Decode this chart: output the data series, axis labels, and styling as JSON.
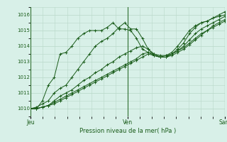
{
  "title": "",
  "xlabel": "Pression niveau de la mer( hPa )",
  "ylabel": "",
  "bg_color": "#d8f0e8",
  "grid_color": "#b8d8c8",
  "line_color": "#1a5c1a",
  "marker": "+",
  "ylim": [
    1009.5,
    1016.5
  ],
  "yticks": [
    1010,
    1011,
    1012,
    1013,
    1014,
    1015,
    1016
  ],
  "xlim": [
    0,
    96
  ],
  "day_ticks": [
    0,
    48,
    96
  ],
  "day_labels": [
    "Jeu",
    "Ven",
    "Sam"
  ],
  "series": [
    [
      1010.0,
      1010.0,
      1010.5,
      1011.5,
      1012.0,
      1013.5,
      1013.6,
      1014.0,
      1014.5,
      1014.8,
      1015.0,
      1015.0,
      1015.0,
      1015.2,
      1015.5,
      1015.1,
      1015.1,
      1015.0,
      1014.5,
      1013.8,
      1013.6,
      1013.4,
      1013.3,
      1013.3,
      1013.5,
      1013.8,
      1014.2,
      1014.8,
      1015.2,
      1015.5,
      1015.6,
      1015.8,
      1016.0,
      1016.2
    ],
    [
      1010.0,
      1010.1,
      1010.3,
      1010.5,
      1011.0,
      1011.3,
      1011.5,
      1012.0,
      1012.5,
      1013.0,
      1013.5,
      1014.0,
      1014.3,
      1014.5,
      1014.8,
      1015.2,
      1015.5,
      1015.1,
      1015.1,
      1014.5,
      1013.8,
      1013.4,
      1013.3,
      1013.4,
      1013.6,
      1014.0,
      1014.5,
      1015.0,
      1015.3,
      1015.5,
      1015.6,
      1015.8,
      1015.9,
      1016.0
    ],
    [
      1010.0,
      1010.0,
      1010.1,
      1010.2,
      1010.5,
      1010.8,
      1011.0,
      1011.2,
      1011.5,
      1011.8,
      1012.0,
      1012.3,
      1012.5,
      1012.8,
      1013.0,
      1013.3,
      1013.5,
      1013.7,
      1013.9,
      1014.0,
      1013.8,
      1013.5,
      1013.3,
      1013.3,
      1013.5,
      1013.7,
      1014.0,
      1014.4,
      1014.8,
      1015.1,
      1015.3,
      1015.5,
      1015.7,
      1015.9
    ],
    [
      1010.0,
      1010.0,
      1010.1,
      1010.2,
      1010.4,
      1010.6,
      1010.8,
      1011.0,
      1011.2,
      1011.4,
      1011.6,
      1011.8,
      1012.0,
      1012.2,
      1012.4,
      1012.6,
      1012.8,
      1013.0,
      1013.2,
      1013.5,
      1013.6,
      1013.5,
      1013.4,
      1013.4,
      1013.5,
      1013.7,
      1013.9,
      1014.2,
      1014.5,
      1014.8,
      1015.0,
      1015.3,
      1015.5,
      1015.7
    ],
    [
      1010.0,
      1010.0,
      1010.1,
      1010.2,
      1010.3,
      1010.5,
      1010.7,
      1010.9,
      1011.1,
      1011.3,
      1011.5,
      1011.7,
      1011.9,
      1012.1,
      1012.3,
      1012.5,
      1012.7,
      1012.9,
      1013.1,
      1013.3,
      1013.5,
      1013.4,
      1013.3,
      1013.3,
      1013.4,
      1013.6,
      1013.8,
      1014.1,
      1014.4,
      1014.7,
      1015.0,
      1015.2,
      1015.4,
      1015.6
    ]
  ]
}
